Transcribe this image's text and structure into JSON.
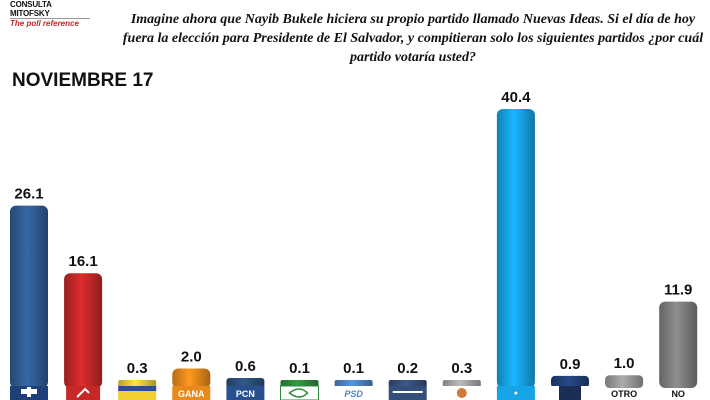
{
  "logo": {
    "line1": "CONSULTA MITOFSKY",
    "line2": "The poll reference"
  },
  "question": "Imagine ahora que Nayib Bukele hiciera su propio partido llamado Nuevas Ideas. Si el día de hoy fuera la elección para Presidente de El Salvador, y compitieran solo los siguientes partidos ¿por cuál partido votaría usted?",
  "period": "NOVIEMBRE 17",
  "chart_data": {
    "type": "bar",
    "title": "",
    "categories": [
      "",
      "",
      "",
      "GANA",
      "PCN",
      "",
      "PSD",
      "",
      "",
      "",
      "",
      "OTRO",
      "NO"
    ],
    "values": [
      26.1,
      16.1,
      0.3,
      2.0,
      0.6,
      0.1,
      0.1,
      0.2,
      0.3,
      40.4,
      0.9,
      1.0,
      11.9
    ],
    "value_labels": [
      "26.1",
      "16.1",
      "0.3",
      "2.0",
      "0.6",
      "0.1",
      "0.1",
      "0.2",
      "0.3",
      "40.4",
      "0.9",
      "1.0",
      "11.9"
    ],
    "colors": [
      "#2f5d93",
      "#c62828",
      "#e8cc3a",
      "#e8891c",
      "#2d4f7c",
      "#2f8a3e",
      "#4e86c6",
      "#34507a",
      "#a7a7a7",
      "#16a4e6",
      "#23417a",
      "#9a9a9a",
      "#808080"
    ],
    "ylim": [
      0,
      41
    ],
    "xlabel": "",
    "ylabel": "",
    "grid": false,
    "legend": "none"
  }
}
